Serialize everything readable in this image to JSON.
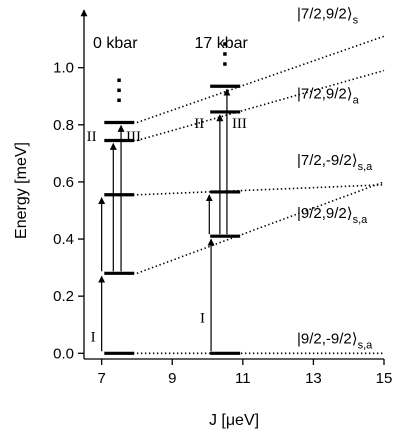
{
  "chart_data": {
    "type": "energy-level-diagram",
    "xlabel": "J [μeV]",
    "ylabel": "Energy [meV]",
    "xlim": [
      6.5,
      15
    ],
    "ylim": [
      -0.02,
      1.16
    ],
    "x_ticks": [
      7,
      9,
      11,
      13,
      15
    ],
    "y_ticks": [
      0.0,
      0.2,
      0.4,
      0.6,
      0.8,
      1.0
    ],
    "y_tick_labels": [
      "0.0",
      "0.2",
      "0.4",
      "0.6",
      "0.8",
      "1.0"
    ],
    "columns": [
      {
        "pressure": "0 kbar",
        "j": 7.5,
        "levels": [
          0.0,
          0.28,
          0.555,
          0.745,
          0.808
        ],
        "transitions": [
          {
            "label": "I",
            "from": 0.0,
            "to": 0.28,
            "x": 7.0
          },
          {
            "label": "II",
            "from": 0.28,
            "to": 0.555,
            "x": 7.0
          },
          {
            "label": "",
            "from": 0.28,
            "to": 0.745,
            "x": 7.33
          },
          {
            "label": "III",
            "from": 0.28,
            "to": 0.808,
            "x": 7.55
          }
        ]
      },
      {
        "pressure": "17 kbar",
        "j": 10.5,
        "levels": [
          0.0,
          0.41,
          0.565,
          0.845,
          0.935
        ],
        "transitions": [
          {
            "label": "I",
            "from": 0.0,
            "to": 0.41,
            "x": 10.1
          },
          {
            "label": "II",
            "from": 0.41,
            "to": 0.565,
            "x": 10.05
          },
          {
            "label": "",
            "from": 0.41,
            "to": 0.845,
            "x": 10.35
          },
          {
            "label": "III",
            "from": 0.41,
            "to": 0.935,
            "x": 10.55
          }
        ]
      }
    ],
    "trend_lines": [
      {
        "state": "|7/2,9/2⟩",
        "subscript": "s",
        "points": [
          [
            8.0,
            0.808
          ],
          [
            15.0,
            1.11
          ]
        ]
      },
      {
        "state": "|7/2,9/2⟩",
        "subscript": "a",
        "points": [
          [
            8.0,
            0.745
          ],
          [
            15.0,
            0.99
          ]
        ]
      },
      {
        "state": "|7/2,-9/2⟩",
        "subscript": "s,a",
        "points": [
          [
            8.0,
            0.555
          ],
          [
            15.0,
            0.59
          ]
        ]
      },
      {
        "state": "|9/2,9/2⟩",
        "subscript": "s,a",
        "points": [
          [
            8.0,
            0.28
          ],
          [
            15.0,
            0.6
          ]
        ]
      },
      {
        "state": "|9/2,-9/2⟩",
        "subscript": "s,a",
        "points": [
          [
            8.0,
            0.0
          ],
          [
            15.0,
            0.0
          ]
        ]
      }
    ],
    "ellipsis_symbol": "⋮",
    "grid": false,
    "legend": "none"
  }
}
